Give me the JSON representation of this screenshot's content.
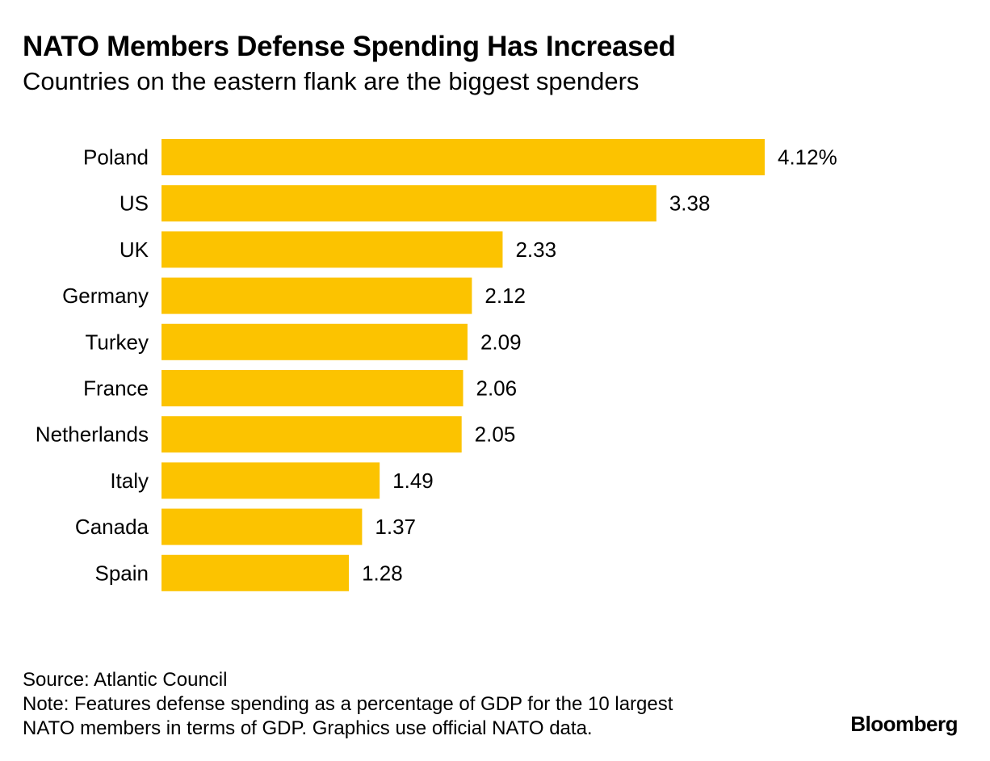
{
  "header": {
    "title": "NATO Members Defense Spending Has Increased",
    "subtitle": "Countries on the eastern flank are the biggest spenders"
  },
  "chart_data": {
    "type": "bar",
    "orientation": "horizontal",
    "title": "NATO Members Defense Spending Has Increased",
    "subtitle": "Countries on the eastern flank are the biggest spenders",
    "categories": [
      "Poland",
      "US",
      "UK",
      "Germany",
      "Turkey",
      "France",
      "Netherlands",
      "Italy",
      "Canada",
      "Spain"
    ],
    "values": [
      4.12,
      3.38,
      2.33,
      2.12,
      2.09,
      2.06,
      2.05,
      1.49,
      1.37,
      1.28
    ],
    "value_labels": [
      "4.12%",
      "3.38",
      "2.33",
      "2.12",
      "2.09",
      "2.06",
      "2.05",
      "1.49",
      "1.37",
      "1.28"
    ],
    "xlim": [
      0,
      4.12
    ],
    "bar_color": "#FCC300",
    "grid": false,
    "legend": "none"
  },
  "footer": {
    "source": "Source: Atlantic Council",
    "note_line1": "Note: Features defense spending as a percentage of GDP for the 10 largest",
    "note_line2": "NATO members in terms of GDP. Graphics use official NATO data.",
    "brand": "Bloomberg"
  }
}
